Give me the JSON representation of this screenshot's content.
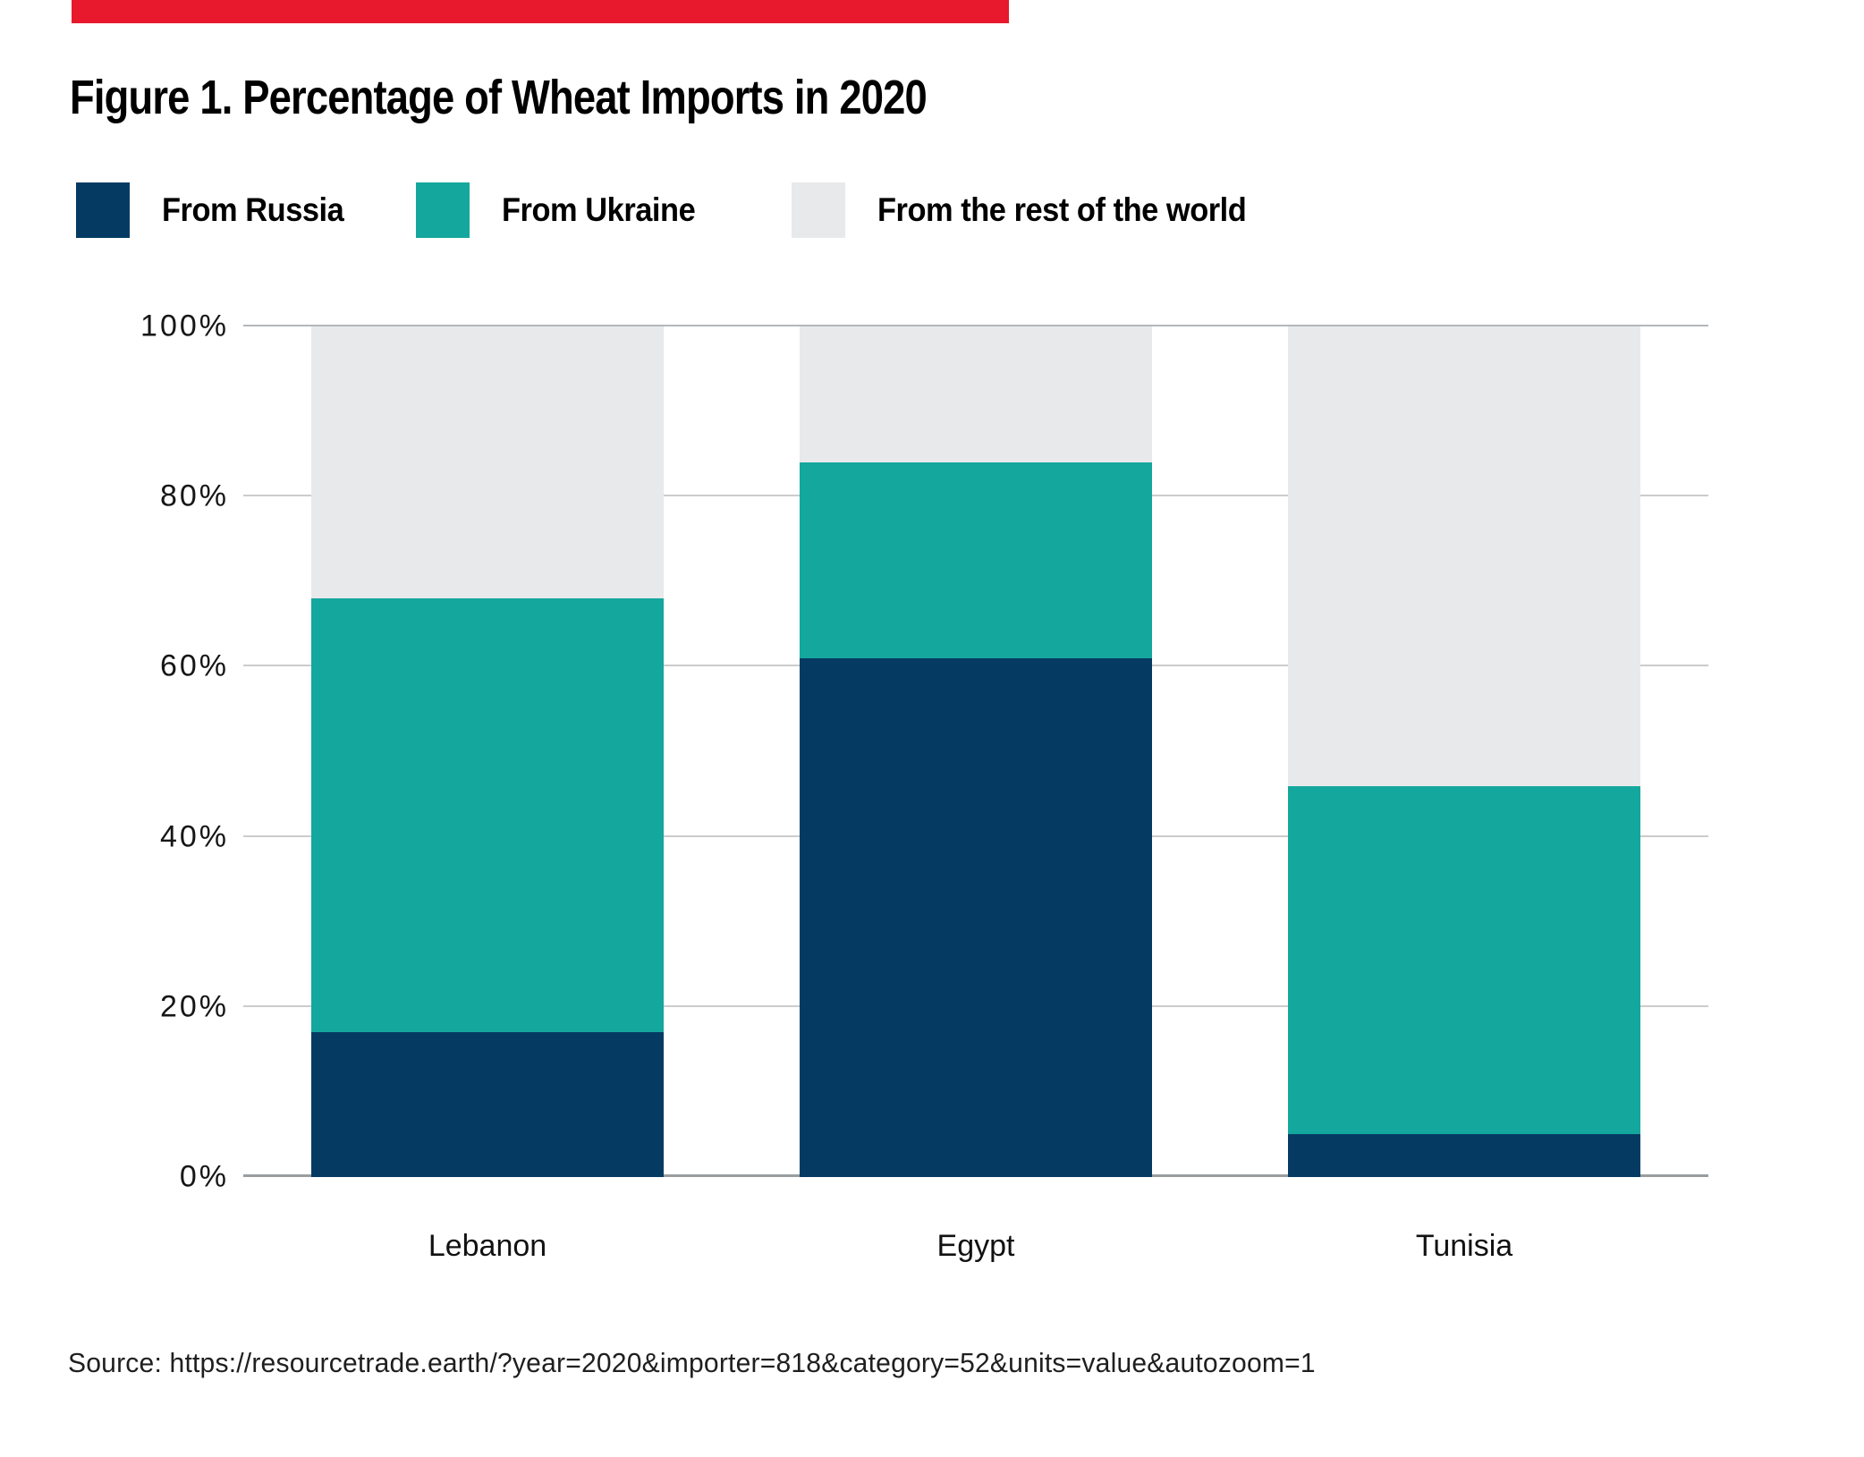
{
  "accent_color": "#e8182d",
  "title": "Figure 1. Percentage of Wheat Imports in 2020",
  "source": "Source: https://resourcetrade.earth/?year=2020&importer=818&category=52&units=value&autozoom=1",
  "chart_data": {
    "type": "bar",
    "stacked": true,
    "title": "Figure 1. Percentage of Wheat Imports in 2020",
    "categories": [
      "Lebanon",
      "Egypt",
      "Tunisia"
    ],
    "series": [
      {
        "name": "From Russia",
        "color": "#053b63",
        "values": [
          17,
          61,
          5
        ]
      },
      {
        "name": "From Ukraine",
        "color": "#14a79d",
        "values": [
          51,
          23,
          41
        ]
      },
      {
        "name": "From the rest of the world",
        "color": "#e7e9ea",
        "values": [
          32,
          16,
          54
        ]
      }
    ],
    "xlabel": "",
    "ylabel": "",
    "ylim": [
      0,
      100
    ],
    "y_ticks": [
      "0%",
      "20%",
      "40%",
      "60%",
      "80%",
      "100%"
    ],
    "grid": true,
    "legend_position": "top"
  }
}
